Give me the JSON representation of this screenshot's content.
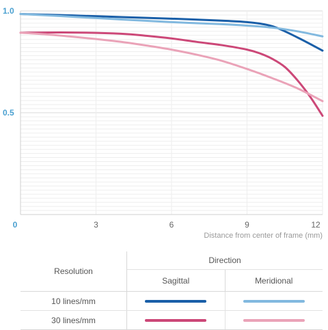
{
  "chart_data": {
    "type": "line",
    "xlabel": "Distance from center of frame (mm)",
    "ylabel": "",
    "xlim": [
      0,
      12
    ],
    "ylim": [
      0,
      1.0
    ],
    "xticks": [
      "0",
      "3",
      "6",
      "9",
      "12"
    ],
    "yticks": [
      "1.0",
      "0.5"
    ],
    "grid": "horizontal",
    "series": [
      {
        "name": "10 lines/mm Sagittal",
        "color": "#1a5fa8",
        "x": [
          0,
          2,
          4,
          6,
          8,
          9,
          10,
          11,
          12
        ],
        "y": [
          0.985,
          0.978,
          0.97,
          0.962,
          0.952,
          0.945,
          0.925,
          0.87,
          0.805
        ]
      },
      {
        "name": "10 lines/mm Meridional",
        "color": "#82b9df",
        "x": [
          0,
          2,
          4,
          6,
          8,
          9,
          10,
          11,
          12
        ],
        "y": [
          0.985,
          0.972,
          0.958,
          0.945,
          0.935,
          0.928,
          0.918,
          0.9,
          0.875
        ]
      },
      {
        "name": "30 lines/mm Sagittal",
        "color": "#cc4878",
        "x": [
          0,
          2,
          4,
          5,
          6,
          7,
          8,
          9,
          9.5,
          10,
          10.5,
          11,
          11.5,
          12
        ],
        "y": [
          0.893,
          0.894,
          0.888,
          0.878,
          0.865,
          0.848,
          0.832,
          0.81,
          0.792,
          0.765,
          0.725,
          0.66,
          0.58,
          0.485
        ]
      },
      {
        "name": "30 lines/mm Meridional",
        "color": "#eaa3b8",
        "x": [
          0,
          1,
          2,
          3,
          4,
          5,
          6,
          7,
          8,
          9,
          10,
          11,
          12
        ],
        "y": [
          0.893,
          0.885,
          0.874,
          0.862,
          0.848,
          0.83,
          0.81,
          0.785,
          0.755,
          0.715,
          0.67,
          0.62,
          0.557
        ]
      }
    ]
  },
  "legend": {
    "resolution_label": "Resolution",
    "direction_label": "Direction",
    "sagittal_label": "Sagittal",
    "meridional_label": "Meridional",
    "rows": [
      {
        "label": "10 lines/mm",
        "sagittal_color": "#1a5fa8",
        "meridional_color": "#82b9df"
      },
      {
        "label": "30 lines/mm",
        "sagittal_color": "#cc4878",
        "meridional_color": "#eaa3b8"
      }
    ]
  }
}
